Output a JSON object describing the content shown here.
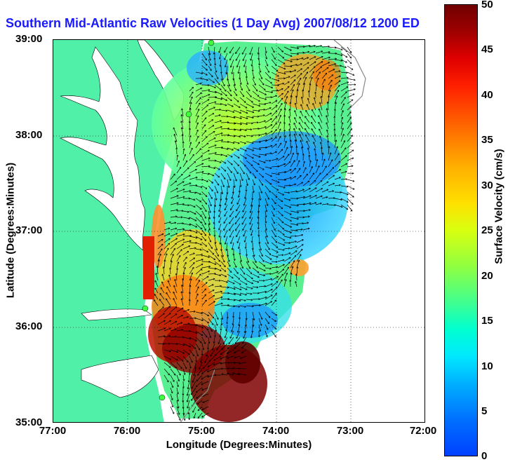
{
  "title": "Southern Mid-Atlantic Raw Velocities (1 Day Avg) 2007/08/12 1200 EDT",
  "x_axis": {
    "label": "Longitude (Degrees:Minutes)",
    "ticks": [
      "77:00",
      "76:00",
      "75:00",
      "74:00",
      "73:00",
      "72:00"
    ]
  },
  "y_axis": {
    "label": "Latitude (Degrees:Minutes)",
    "ticks": [
      "39:00",
      "38:00",
      "37:00",
      "36:00",
      "35:00"
    ]
  },
  "colorbar": {
    "label": "Surface Velocity (cm/s)",
    "ticks": [
      "50",
      "45",
      "40",
      "35",
      "30",
      "25",
      "20",
      "15",
      "10",
      "5",
      "0"
    ],
    "range": [
      0,
      50
    ]
  },
  "colors": {
    "land": "#50f0a8",
    "water_inland": "#ffffff",
    "title": "#1a1aff",
    "station": "#40ff40"
  }
}
